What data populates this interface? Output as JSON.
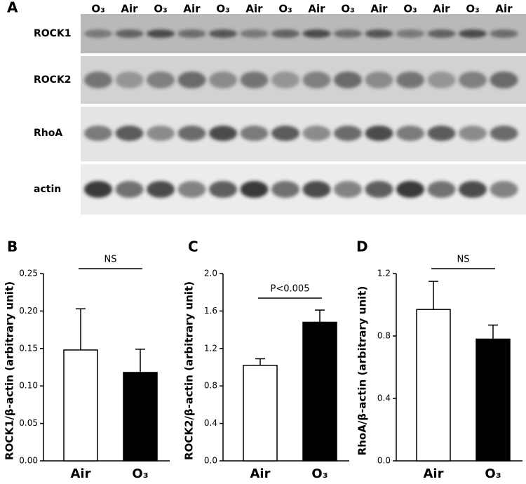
{
  "panel_labels": [
    "A",
    "B",
    "C",
    "D"
  ],
  "blot": {
    "lanes": [
      "O₃",
      "Air",
      "O₃",
      "Air",
      "O₃",
      "Air",
      "O₃",
      "Air",
      "O₃",
      "Air",
      "O₃",
      "Air",
      "O₃",
      "Air"
    ],
    "rows": [
      "ROCK1",
      "ROCK2",
      "RhoA",
      "actin"
    ]
  },
  "chart_data": [
    {
      "type": "bar",
      "y_label": "ROCK1/β-actin (arbitrary unit)",
      "categories": [
        "Air",
        "O₃"
      ],
      "values": [
        0.148,
        0.118
      ],
      "errors": [
        0.055,
        0.031
      ],
      "colors": [
        "#ffffff",
        "#000000"
      ],
      "ylim": [
        0,
        0.25
      ],
      "yticks": [
        {
          "value": 0,
          "label": "0.00"
        },
        0.05,
        {
          "value": 0.1,
          "label": "0.10"
        },
        0.15,
        {
          "value": 0.2,
          "label": "0.20"
        },
        0.25
      ],
      "annotation": "NS"
    },
    {
      "type": "bar",
      "y_label": "ROCK2/β-actin (arbitrary unit)",
      "categories": [
        "Air",
        "O₃"
      ],
      "values": [
        1.02,
        1.48
      ],
      "errors": [
        0.07,
        0.13
      ],
      "colors": [
        "#ffffff",
        "#000000"
      ],
      "ylim": [
        0,
        2
      ],
      "yticks": [
        {
          "value": 0,
          "label": "0.0"
        },
        0.4,
        0.8,
        1.2,
        1.6,
        {
          "value": 2,
          "label": "2.0"
        }
      ],
      "annotation": "P<0.005"
    },
    {
      "type": "bar",
      "y_label": "RhoA/β-actin (arbitrary unit)",
      "categories": [
        "Air",
        "O₃"
      ],
      "values": [
        0.97,
        0.78
      ],
      "errors": [
        0.18,
        0.09
      ],
      "colors": [
        "#ffffff",
        "#000000"
      ],
      "ylim": [
        0,
        1.2
      ],
      "yticks": [
        {
          "value": 0,
          "label": "0.0"
        },
        0.4,
        0.8,
        1.2
      ],
      "annotation": "NS"
    }
  ]
}
